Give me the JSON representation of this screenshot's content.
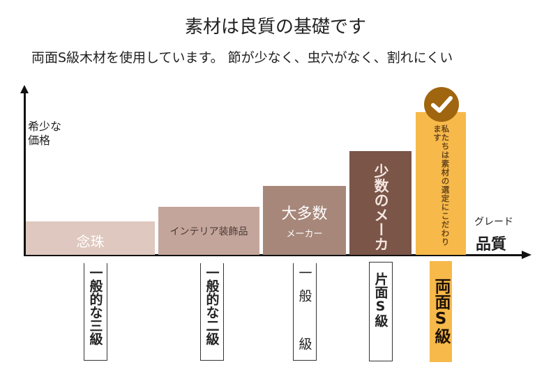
{
  "header": {
    "title": "素材は良質の基礎です",
    "subtitle": "両面S級木材を使用しています。 節が少なく、虫穴がなく、割れにくい"
  },
  "axes": {
    "y_label": "希少な価格",
    "x_label_small": "グレード",
    "x_label_large": "品質"
  },
  "colors": {
    "bar1": "#dfc8bf",
    "bar2": "#c4a59b",
    "bar3": "#a7877a",
    "bar4": "#7a5548",
    "bar5": "#f7b94a",
    "check": "#a0650f"
  },
  "bars": [
    {
      "label": "念珠",
      "level": 1,
      "grade": "一般的な三級"
    },
    {
      "label": "インテリア装飾品",
      "level": 2,
      "grade": "一般的な二級"
    },
    {
      "label": "大多数",
      "sublabel": "メーカー",
      "level": 3,
      "grade": "一般 級"
    },
    {
      "label": "少数のメーカ",
      "level": 4,
      "grade": "片面S級"
    },
    {
      "label": "私たちは素材の選定にこだわります",
      "level": 5,
      "grade": "両面S級",
      "icon": "check-circle-icon"
    }
  ]
}
